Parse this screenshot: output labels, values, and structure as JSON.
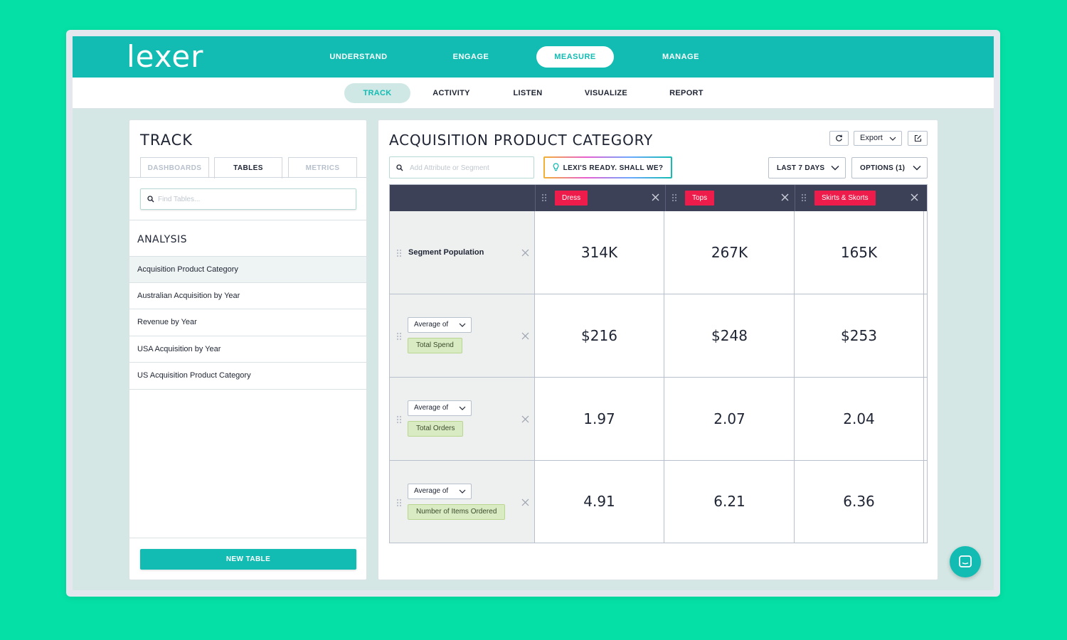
{
  "app": {
    "logo": "lexer"
  },
  "topnav": [
    "UNDERSTAND",
    "ENGAGE",
    "MEASURE",
    "MANAGE"
  ],
  "subnav": [
    "TRACK",
    "ACTIVITY",
    "LISTEN",
    "VISUALIZE",
    "REPORT"
  ],
  "left": {
    "title": "TRACK",
    "tabs": [
      "DASHBOARDS",
      "TABLES",
      "METRICS"
    ],
    "find_placeholder": "Find Tables...",
    "section_title": "ANALYSIS",
    "items": [
      "Acquisition Product Category",
      "Australian Acquisition by Year",
      "Revenue by Year",
      "USA Acquisition by Year",
      "US Acquisition Product Category"
    ],
    "new_table": "NEW TABLE"
  },
  "main": {
    "title": "ACQUISITION PRODUCT CATEGORY",
    "export_label": "Export",
    "attr_placeholder": "Add Attribute or Segment",
    "lexi_label": "LEXI'S READY. SHALL WE?",
    "date_range": "LAST 7 DAYS",
    "options": "OPTIONS (1)"
  },
  "table": {
    "columns": [
      "Dress",
      "Tops",
      "Skirts & Skorts"
    ],
    "rows": [
      {
        "label": "Segment Population",
        "values": [
          "314K",
          "267K",
          "165K"
        ]
      },
      {
        "agg": "Average of",
        "metric": "Total Spend",
        "values": [
          "$216",
          "$248",
          "$253"
        ]
      },
      {
        "agg": "Average of",
        "metric": "Total Orders",
        "values": [
          "1.97",
          "2.07",
          "2.04"
        ]
      },
      {
        "agg": "Average of",
        "metric": "Number of Items Ordered",
        "values": [
          "4.91",
          "6.21",
          "6.36"
        ]
      }
    ]
  },
  "colors": {
    "brand": "#12bcb3",
    "background": "#05e0a6",
    "tag_red": "#ee1c4a",
    "header_dark": "#3d4158"
  }
}
